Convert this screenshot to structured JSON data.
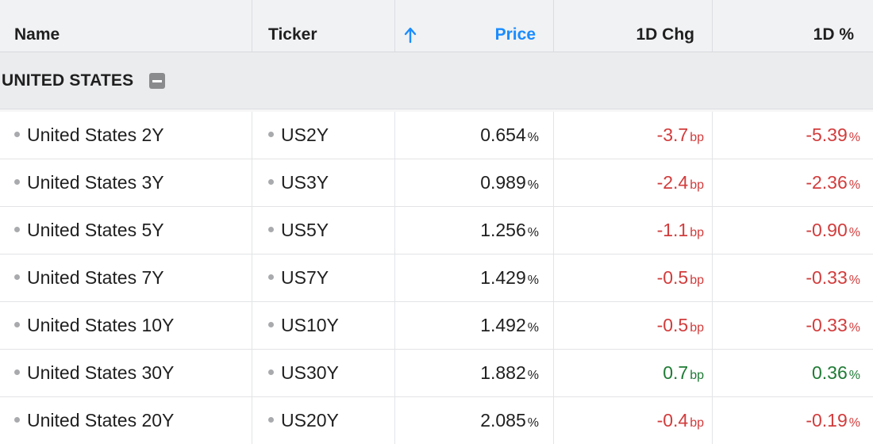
{
  "header": {
    "name": "Name",
    "ticker": "Ticker",
    "price": "Price",
    "chg": "1D Chg",
    "pct": "1D %"
  },
  "group": {
    "title": "UNITED STATES"
  },
  "rows": [
    {
      "name": "United States 2Y",
      "ticker": "US2Y",
      "price": "0.654",
      "price_unit": "%",
      "chg": "-3.7",
      "chg_unit": "bp",
      "pct": "-5.39",
      "pct_unit": "%",
      "trend": "neg"
    },
    {
      "name": "United States 3Y",
      "ticker": "US3Y",
      "price": "0.989",
      "price_unit": "%",
      "chg": "-2.4",
      "chg_unit": "bp",
      "pct": "-2.36",
      "pct_unit": "%",
      "trend": "neg"
    },
    {
      "name": "United States 5Y",
      "ticker": "US5Y",
      "price": "1.256",
      "price_unit": "%",
      "chg": "-1.1",
      "chg_unit": "bp",
      "pct": "-0.90",
      "pct_unit": "%",
      "trend": "neg"
    },
    {
      "name": "United States 7Y",
      "ticker": "US7Y",
      "price": "1.429",
      "price_unit": "%",
      "chg": "-0.5",
      "chg_unit": "bp",
      "pct": "-0.33",
      "pct_unit": "%",
      "trend": "neg"
    },
    {
      "name": "United States 10Y",
      "ticker": "US10Y",
      "price": "1.492",
      "price_unit": "%",
      "chg": "-0.5",
      "chg_unit": "bp",
      "pct": "-0.33",
      "pct_unit": "%",
      "trend": "neg"
    },
    {
      "name": "United States 30Y",
      "ticker": "US30Y",
      "price": "1.882",
      "price_unit": "%",
      "chg": "0.7",
      "chg_unit": "bp",
      "pct": "0.36",
      "pct_unit": "%",
      "trend": "pos"
    },
    {
      "name": "United States 20Y",
      "ticker": "US20Y",
      "price": "2.085",
      "price_unit": "%",
      "chg": "-0.4",
      "chg_unit": "bp",
      "pct": "-0.19",
      "pct_unit": "%",
      "trend": "neg"
    }
  ],
  "colors": {
    "accent": "#1a8cff",
    "negative": "#d23c3c",
    "positive": "#1f7a35"
  },
  "icons": {
    "sort": "arrow-up-icon",
    "collapse": "minus-square-icon",
    "bullet": "dot-icon"
  }
}
